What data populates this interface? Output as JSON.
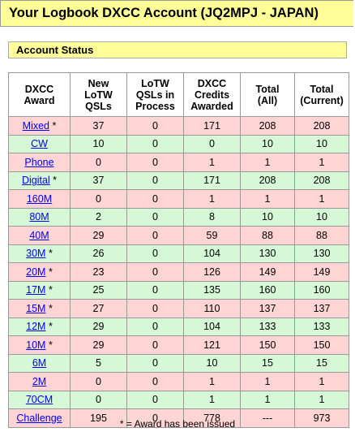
{
  "header": {
    "title": "Your Logbook DXCC Account (JQ2MPJ - JAPAN)"
  },
  "section": {
    "title": "Account Status"
  },
  "table": {
    "columns": [
      [
        "DXCC",
        "Award"
      ],
      [
        "New",
        "LoTW",
        "QSLs"
      ],
      [
        "LoTW",
        "QSLs in",
        "Process"
      ],
      [
        "DXCC",
        "Credits",
        "Awarded"
      ],
      [
        "Total",
        "(All)"
      ],
      [
        "Total",
        "(Current)"
      ]
    ],
    "rows": [
      {
        "award": "Mixed",
        "star": " *",
        "new": "37",
        "process": "0",
        "credits": "171",
        "all": "208",
        "current": "208",
        "color": "pink"
      },
      {
        "award": "CW",
        "star": "",
        "new": "10",
        "process": "0",
        "credits": "0",
        "all": "10",
        "current": "10",
        "color": "green"
      },
      {
        "award": "Phone",
        "star": "",
        "new": "0",
        "process": "0",
        "credits": "1",
        "all": "1",
        "current": "1",
        "color": "pink"
      },
      {
        "award": "Digital",
        "star": " *",
        "new": "37",
        "process": "0",
        "credits": "171",
        "all": "208",
        "current": "208",
        "color": "green"
      },
      {
        "award": "160M",
        "star": "",
        "new": "0",
        "process": "0",
        "credits": "1",
        "all": "1",
        "current": "1",
        "color": "pink"
      },
      {
        "award": "80M",
        "star": "",
        "new": "2",
        "process": "0",
        "credits": "8",
        "all": "10",
        "current": "10",
        "color": "green"
      },
      {
        "award": "40M",
        "star": "",
        "new": "29",
        "process": "0",
        "credits": "59",
        "all": "88",
        "current": "88",
        "color": "pink"
      },
      {
        "award": "30M",
        "star": " *",
        "new": "26",
        "process": "0",
        "credits": "104",
        "all": "130",
        "current": "130",
        "color": "green"
      },
      {
        "award": "20M",
        "star": " *",
        "new": "23",
        "process": "0",
        "credits": "126",
        "all": "149",
        "current": "149",
        "color": "pink"
      },
      {
        "award": "17M",
        "star": " *",
        "new": "25",
        "process": "0",
        "credits": "135",
        "all": "160",
        "current": "160",
        "color": "green"
      },
      {
        "award": "15M",
        "star": " *",
        "new": "27",
        "process": "0",
        "credits": "110",
        "all": "137",
        "current": "137",
        "color": "pink"
      },
      {
        "award": "12M",
        "star": " *",
        "new": "29",
        "process": "0",
        "credits": "104",
        "all": "133",
        "current": "133",
        "color": "green"
      },
      {
        "award": "10M",
        "star": " *",
        "new": "29",
        "process": "0",
        "credits": "121",
        "all": "150",
        "current": "150",
        "color": "pink"
      },
      {
        "award": "6M",
        "star": "",
        "new": "5",
        "process": "0",
        "credits": "10",
        "all": "15",
        "current": "15",
        "color": "green"
      },
      {
        "award": "2M",
        "star": "",
        "new": "0",
        "process": "0",
        "credits": "1",
        "all": "1",
        "current": "1",
        "color": "pink"
      },
      {
        "award": "70CM",
        "star": "",
        "new": "0",
        "process": "0",
        "credits": "1",
        "all": "1",
        "current": "1",
        "color": "green"
      },
      {
        "award": "Challenge",
        "star": "",
        "new": "195",
        "process": "0",
        "credits": "778",
        "all": "---",
        "current": "973",
        "color": "pink"
      }
    ]
  },
  "footnote": "* = Award has been issued",
  "colors": {
    "header_bg": "#ffff99",
    "row_pink": "#ffd4d4",
    "row_green": "#d6f8d6",
    "link": "#0000ee"
  }
}
